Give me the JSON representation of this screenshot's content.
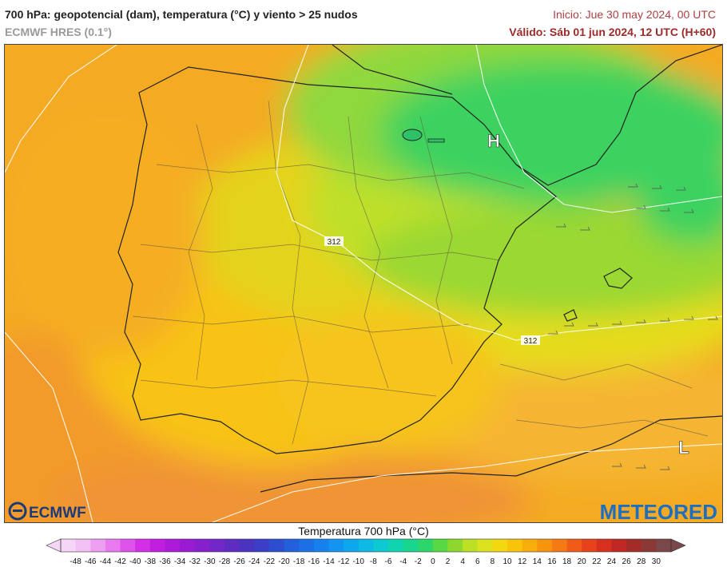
{
  "header": {
    "title": "700 hPa: geopotencial (dam), temperatura (°C) y viento > 25 nudos",
    "model": "ECMWF HRES (0.1°)",
    "init": "Inicio: Jue 30 may 2024, 00 UTC",
    "valid": "Válido: Sáb 01 jun 2024, 12 UTC (H+60)"
  },
  "map": {
    "pressure_centers": [
      {
        "label": "H",
        "kind": "high-pressure-center"
      },
      {
        "label": "L",
        "kind": "low-pressure-center"
      }
    ],
    "contour_labels": [
      "312",
      "312"
    ]
  },
  "logos": {
    "left": "ECMWF",
    "right": "METEORED"
  },
  "legend": {
    "title": "Temperatura 700 hPa (°C)",
    "ticks": [
      -48,
      -46,
      -44,
      -42,
      -40,
      -38,
      -36,
      -34,
      -32,
      -30,
      -28,
      -26,
      -24,
      -22,
      -20,
      -18,
      -16,
      -14,
      -12,
      -10,
      -8,
      -6,
      -4,
      -2,
      0,
      2,
      4,
      6,
      8,
      10,
      12,
      14,
      16,
      18,
      20,
      22,
      24,
      26,
      28,
      30
    ],
    "colors": [
      "#f6d6f6",
      "#f3c0f3",
      "#ee9ff2",
      "#e879ee",
      "#de52ea",
      "#d22fe6",
      "#c21ee0",
      "#ad1bd8",
      "#9a1bd2",
      "#8620cc",
      "#7327c6",
      "#5f2cc2",
      "#4b33c0",
      "#3b3fc8",
      "#2e4ed2",
      "#245fdc",
      "#1c6fe4",
      "#1681ec",
      "#1294f0",
      "#0ea7ee",
      "#0cbae4",
      "#0cc9d2",
      "#10d4b0",
      "#18d68e",
      "#2cd66a",
      "#5ad844",
      "#8ed82e",
      "#bce024",
      "#dce21e",
      "#f2d810",
      "#f7c40a",
      "#f8ae0a",
      "#f7940e",
      "#f47a14",
      "#f05c18",
      "#e8421c",
      "#d8301e",
      "#c02824",
      "#a42c28",
      "#8a3a36",
      "#7a4848"
    ]
  }
}
